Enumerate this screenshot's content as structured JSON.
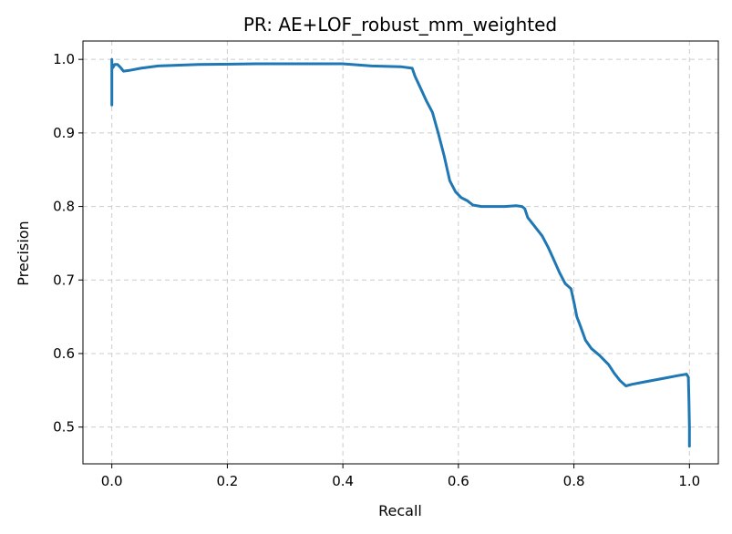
{
  "chart_data": {
    "type": "line",
    "title": "PR: AE+LOF_robust_mm_weighted",
    "xlabel": "Recall",
    "ylabel": "Precision",
    "xlim": [
      -0.05,
      1.05
    ],
    "ylim": [
      0.45,
      1.025
    ],
    "xticks": [
      0.0,
      0.2,
      0.4,
      0.6,
      0.8,
      1.0
    ],
    "xtick_labels": [
      "0.0",
      "0.2",
      "0.4",
      "0.6",
      "0.8",
      "1.0"
    ],
    "yticks": [
      0.5,
      0.6,
      0.7,
      0.8,
      0.9,
      1.0
    ],
    "ytick_labels": [
      "0.5",
      "0.6",
      "0.7",
      "0.8",
      "0.9",
      "1.0"
    ],
    "grid": true,
    "series": [
      {
        "color": "#1f77b4",
        "x": [
          0.0,
          0.0,
          0.0,
          0.002,
          0.005,
          0.01,
          0.015,
          0.02,
          0.03,
          0.05,
          0.08,
          0.15,
          0.25,
          0.35,
          0.4,
          0.45,
          0.5,
          0.52,
          0.525,
          0.535,
          0.545,
          0.555,
          0.565,
          0.575,
          0.585,
          0.595,
          0.605,
          0.615,
          0.625,
          0.64,
          0.66,
          0.68,
          0.7,
          0.71,
          0.715,
          0.72,
          0.73,
          0.745,
          0.755,
          0.765,
          0.775,
          0.785,
          0.795,
          0.8,
          0.805,
          0.81,
          0.82,
          0.83,
          0.845,
          0.86,
          0.87,
          0.88,
          0.89,
          0.9,
          0.92,
          0.94,
          0.96,
          0.98,
          0.995,
          0.998,
          0.999,
          1.0,
          1.0
        ],
        "y": [
          0.938,
          1.0,
          0.995,
          0.989,
          0.993,
          0.993,
          0.989,
          0.984,
          0.985,
          0.988,
          0.991,
          0.993,
          0.994,
          0.994,
          0.994,
          0.991,
          0.99,
          0.988,
          0.977,
          0.96,
          0.943,
          0.928,
          0.9,
          0.87,
          0.835,
          0.82,
          0.812,
          0.808,
          0.802,
          0.8,
          0.8,
          0.8,
          0.801,
          0.8,
          0.797,
          0.785,
          0.775,
          0.76,
          0.745,
          0.728,
          0.71,
          0.695,
          0.688,
          0.67,
          0.65,
          0.64,
          0.618,
          0.607,
          0.597,
          0.585,
          0.573,
          0.563,
          0.556,
          0.558,
          0.561,
          0.564,
          0.567,
          0.57,
          0.572,
          0.568,
          0.54,
          0.5,
          0.474
        ]
      }
    ]
  }
}
